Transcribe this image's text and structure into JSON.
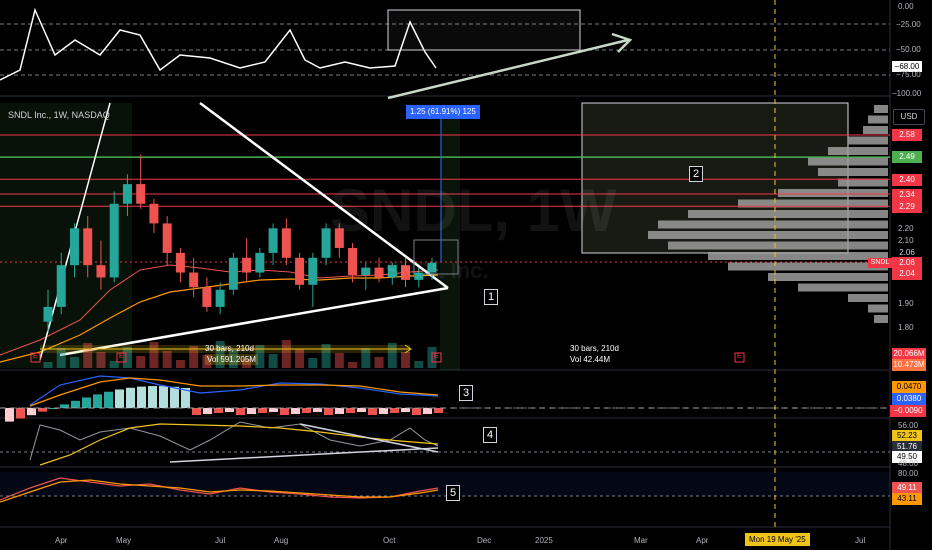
{
  "symbol": {
    "title": "SNDL Inc., 1W, NASDAQ",
    "currency": "USD",
    "watermark_ticker": "SNDL, 1W",
    "watermark_name": "SNDL Inc."
  },
  "top_pane": {
    "ticks": [
      "0.00",
      "−25.00",
      "−50.00",
      "−68.00",
      "−75.00",
      "−100.00"
    ]
  },
  "price_axis": {
    "ticks": [
      "2.20",
      "2.10",
      "1.90",
      "1.80"
    ]
  },
  "price_tags": [
    {
      "label": "2.58",
      "color": "#f23645"
    },
    {
      "label": "2.49",
      "color": "#4caf50"
    },
    {
      "label": "2.40",
      "color": "#f23645"
    },
    {
      "label": "2.34",
      "color": "#f23645"
    },
    {
      "label": "2.29",
      "color": "#f23645"
    },
    {
      "label": "2.06",
      "color": "#f23645"
    },
    {
      "label": "2.06",
      "color": "#f23645"
    },
    {
      "label": "2.04",
      "color": "#f23645"
    }
  ],
  "current_price_label": "SNDL",
  "measure_label": "1.25 (61.91%) 125",
  "range_left": {
    "line1": "30 bars, 210d",
    "line2": "Vol 591.205M"
  },
  "range_right": {
    "line1": "30 bars, 210d",
    "line2": "Vol 42.44M"
  },
  "volume_tags": [
    "20.066M",
    "10.473M"
  ],
  "macd_tags": [
    "0.0470",
    "0.0380",
    "−0.0090"
  ],
  "rsi_tags": [
    "56.00",
    "52.23",
    "51.76",
    "49.50",
    "48.00"
  ],
  "stoch_tags": [
    "80.00",
    "49.11",
    "43.11"
  ],
  "annotations": [
    "1",
    "2",
    "3",
    "4",
    "5"
  ],
  "time_axis": [
    "Apr",
    "May",
    "Jul",
    "Aug",
    "Oct",
    "Dec",
    "2025",
    "Mar",
    "Apr",
    "Jul"
  ],
  "crosshair_date": "Mon 19 May '25",
  "earnings_marker": "E",
  "colors": {
    "up": "#26a69a",
    "down": "#ef5350",
    "hline_red": "#f23645",
    "hline_green": "#4caf50",
    "crosshair": "#f0c419",
    "accent_blue": "#2962ff"
  },
  "chart_data": {
    "type": "candlestick",
    "title": "SNDL Inc., 1W, NASDAQ",
    "ohlc": [
      [
        1.82,
        1.95,
        1.78,
        1.88
      ],
      [
        1.88,
        2.1,
        1.85,
        2.05
      ],
      [
        2.05,
        2.22,
        2.0,
        2.2
      ],
      [
        2.2,
        2.25,
        2.0,
        2.05
      ],
      [
        2.05,
        2.15,
        1.95,
        2.0
      ],
      [
        2.0,
        2.35,
        1.98,
        2.3
      ],
      [
        2.3,
        2.42,
        2.25,
        2.38
      ],
      [
        2.38,
        2.5,
        2.28,
        2.3
      ],
      [
        2.3,
        2.32,
        2.18,
        2.22
      ],
      [
        2.22,
        2.25,
        2.05,
        2.1
      ],
      [
        2.1,
        2.12,
        1.98,
        2.02
      ],
      [
        2.02,
        2.08,
        1.92,
        1.96
      ],
      [
        1.96,
        2.0,
        1.86,
        1.88
      ],
      [
        1.88,
        1.98,
        1.85,
        1.95
      ],
      [
        1.95,
        2.1,
        1.93,
        2.08
      ],
      [
        2.08,
        2.16,
        1.98,
        2.02
      ],
      [
        2.02,
        2.12,
        2.0,
        2.1
      ],
      [
        2.1,
        2.22,
        2.05,
        2.2
      ],
      [
        2.2,
        2.24,
        2.05,
        2.08
      ],
      [
        2.08,
        2.1,
        1.95,
        1.97
      ],
      [
        1.97,
        2.1,
        1.88,
        2.08
      ],
      [
        2.08,
        2.22,
        2.05,
        2.2
      ],
      [
        2.2,
        2.22,
        2.08,
        2.12
      ],
      [
        2.12,
        2.14,
        1.98,
        2.01
      ],
      [
        2.01,
        2.06,
        1.95,
        2.04
      ],
      [
        2.04,
        2.08,
        1.98,
        2.0
      ],
      [
        2.0,
        2.06,
        1.97,
        2.05
      ],
      [
        2.05,
        2.08,
        1.96,
        1.99
      ],
      [
        1.99,
        2.04,
        1.96,
        2.02
      ],
      [
        2.02,
        2.08,
        1.99,
        2.06
      ]
    ],
    "horizontal_levels": [
      2.58,
      2.49,
      2.4,
      2.34,
      2.29
    ],
    "last_price": 2.06
  }
}
